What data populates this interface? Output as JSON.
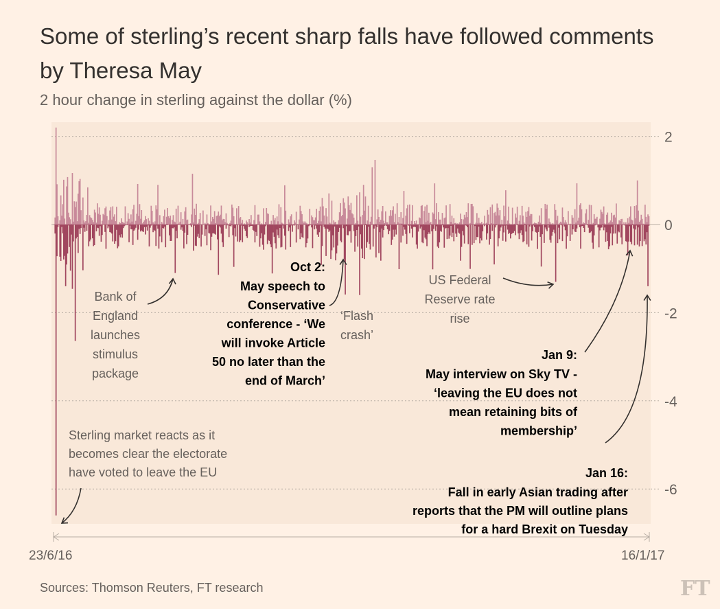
{
  "chart_data": {
    "type": "bar",
    "title": "Some of sterling’s recent sharp falls have followed comments by Theresa May",
    "subtitle": "2 hour change in sterling against the dollar (%)",
    "ylim": [
      -6.6,
      2.3
    ],
    "yticks": [
      {
        "value": 2,
        "label": "2"
      },
      {
        "value": 0,
        "label": "0"
      },
      {
        "value": -2,
        "label": "-2"
      },
      {
        "value": -4,
        "label": "-4"
      },
      {
        "value": -6,
        "label": "-6"
      }
    ],
    "x_start": "23/6/16",
    "x_end": "16/1/17",
    "series_color": "#a1475f",
    "positive_color": "#c88a9a",
    "events": [
      {
        "name": "brexit-vote",
        "date": "2016-06-23",
        "position": 0.003,
        "value": -6.6
      },
      {
        "name": "bank-of-england",
        "date": "2016-08-04",
        "position": 0.203,
        "value": -1.1
      },
      {
        "name": "oct-2",
        "date": "2016-10-02",
        "position": 0.488,
        "value": -0.8
      },
      {
        "name": "flash-crash",
        "date": "2016-10-07",
        "position": 0.513,
        "value": -1.6
      },
      {
        "name": "us-fed",
        "date": "2016-12-14",
        "position": 0.843,
        "value": -1.3
      },
      {
        "name": "jan-9",
        "date": "2017-01-09",
        "position": 0.965,
        "value": -0.7
      },
      {
        "name": "jan-16",
        "date": "2017-01-16",
        "position": 0.998,
        "value": -1.4
      }
    ],
    "annotations": {
      "boe": [
        "Bank of",
        "England",
        "launches",
        "stimulus",
        "package"
      ],
      "oct2_title": "Oct 2:",
      "oct2_body": [
        "May speech to",
        "Conservative",
        "conference - ‘We",
        "will invoke Article",
        "50 no later than the",
        "end of March’"
      ],
      "flash": [
        "‘Flash",
        "crash’"
      ],
      "fed": [
        "US Federal",
        "Reserve rate",
        "rise"
      ],
      "jan9_title": "Jan 9:",
      "jan9_body": [
        "May interview on Sky TV -",
        "‘leaving the EU does not",
        "mean retaining bits of",
        "membership’"
      ],
      "brexit": [
        "Sterling market reacts as it",
        "becomes clear the electorate",
        "have voted to leave the EU"
      ],
      "jan16_title": "Jan 16:",
      "jan16_body": [
        "Fall in early Asian trading after",
        "reports that the PM will outline plans",
        "for a hard Brexit on Tuesday"
      ]
    }
  },
  "footer": {
    "source": "Sources: Thomson Reuters, FT research",
    "logo": "FT"
  }
}
